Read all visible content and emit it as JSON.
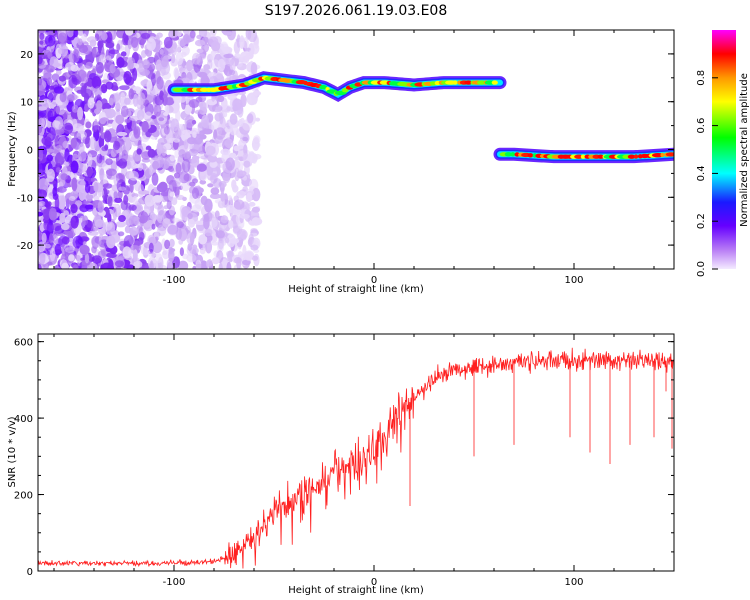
{
  "title": "S197.2026.061.19.03.E08",
  "chart_data": [
    {
      "type": "heatmap",
      "xlabel": "Height of straight line (km)",
      "ylabel": "Frequency (Hz)",
      "xlim": [
        -168,
        150
      ],
      "ylim": [
        -25,
        25
      ],
      "xticks": [
        -100,
        0,
        100
      ],
      "yticks": [
        -20,
        -10,
        0,
        10,
        20
      ],
      "colorbar": {
        "label": "Normalized spectral amplitude",
        "range": [
          0,
          1
        ],
        "ticks": [
          "0.0",
          "0.2",
          "0.4",
          "0.6",
          "0.8"
        ],
        "tick_values": [
          0.0,
          0.2,
          0.4,
          0.6,
          0.8
        ]
      },
      "features": [
        {
          "name": "noise",
          "x_range": [
            -168,
            -70
          ],
          "y_range": [
            -25,
            25
          ]
        },
        {
          "name": "signal-upper",
          "x_range": [
            -100,
            63
          ],
          "track": [
            [
              -100,
              12.5
            ],
            [
              -80,
              12.5
            ],
            [
              -65,
              13.5
            ],
            [
              -55,
              15
            ],
            [
              -45,
              14.5
            ],
            [
              -35,
              14
            ],
            [
              -25,
              13
            ],
            [
              -18,
              11.5
            ],
            [
              -12,
              13
            ],
            [
              -5,
              14
            ],
            [
              5,
              14
            ],
            [
              20,
              13.5
            ],
            [
              35,
              14
            ],
            [
              50,
              14
            ],
            [
              63,
              14
            ]
          ]
        },
        {
          "name": "signal-lower",
          "x_range": [
            63,
            150
          ],
          "track": [
            [
              63,
              -1
            ],
            [
              70,
              -1
            ],
            [
              90,
              -1.5
            ],
            [
              110,
              -1.5
            ],
            [
              130,
              -1.5
            ],
            [
              150,
              -1
            ]
          ]
        }
      ]
    },
    {
      "type": "line",
      "xlabel": "Height of straight line (km)",
      "ylabel": "SNR (10 * v/v)",
      "xlim": [
        -168,
        150
      ],
      "ylim": [
        0,
        620
      ],
      "xticks": [
        -100,
        0,
        100
      ],
      "yticks": [
        0,
        200,
        400,
        600
      ],
      "color": "#ff2020",
      "series": [
        {
          "name": "SNR",
          "x": [
            -168,
            -140,
            -110,
            -90,
            -80,
            -70,
            -60,
            -50,
            -40,
            -30,
            -20,
            -10,
            0,
            10,
            20,
            30,
            40,
            60,
            80,
            100,
            120,
            150
          ],
          "values": [
            20,
            20,
            20,
            22,
            25,
            40,
            90,
            150,
            190,
            220,
            260,
            290,
            320,
            390,
            450,
            500,
            530,
            540,
            550,
            550,
            550,
            550
          ]
        }
      ]
    }
  ]
}
